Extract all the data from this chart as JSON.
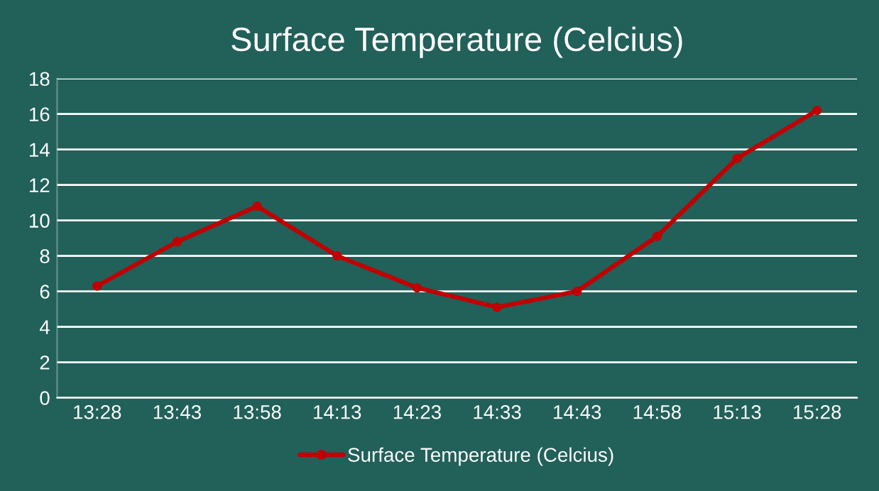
{
  "chart_data": {
    "type": "line",
    "title": "Surface Temperature (Celcius)",
    "categories": [
      "13:28",
      "13:43",
      "13:58",
      "14:13",
      "14:23",
      "14:33",
      "14:43",
      "14:58",
      "15:13",
      "15:28"
    ],
    "series": [
      {
        "name": "Surface Temperature (Celcius)",
        "color": "#c00000",
        "values": [
          6.3,
          8.8,
          10.8,
          8.0,
          6.2,
          5.1,
          6.0,
          9.1,
          13.5,
          16.2
        ]
      }
    ],
    "ylim": [
      0,
      18
    ],
    "yticks": [
      0,
      2,
      4,
      6,
      8,
      10,
      12,
      14,
      16,
      18
    ],
    "grid": "y",
    "legend": "bottom",
    "marker": "circle",
    "line_style": "solid"
  }
}
